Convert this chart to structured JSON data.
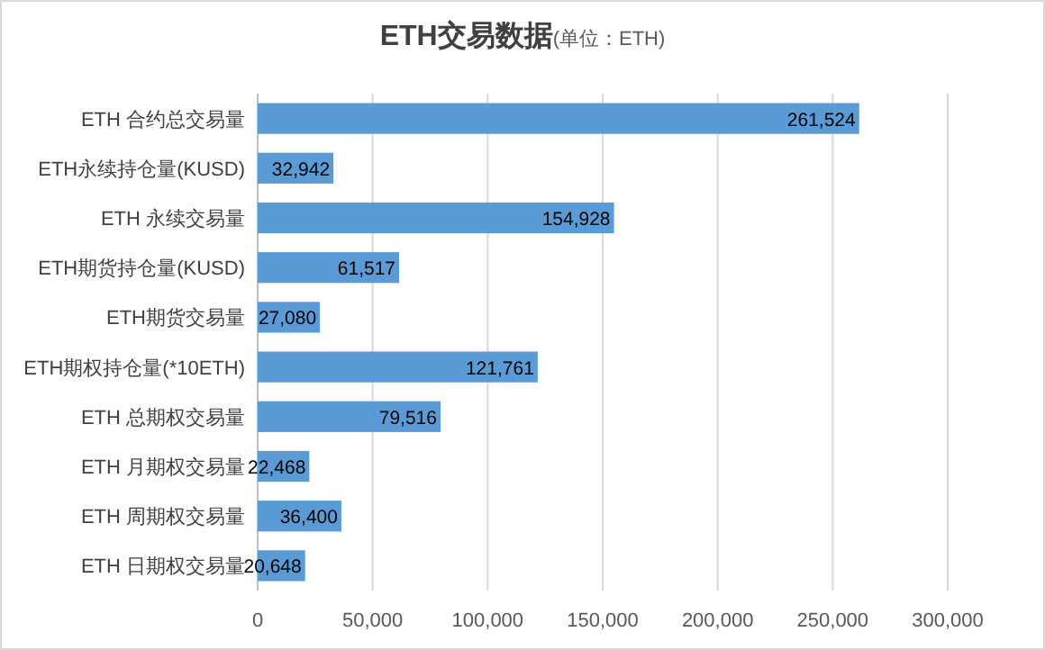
{
  "chart_data": {
    "type": "bar",
    "orientation": "horizontal",
    "title": "ETH交易数据",
    "subtitle": "(单位：ETH)",
    "categories": [
      "ETH 合约总交易量",
      "ETH永续持仓量(KUSD)",
      "ETH 永续交易量",
      "ETH期货持仓量(KUSD)",
      "ETH期货交易量",
      "ETH期权持仓量(*10ETH)",
      "ETH 总期权交易量",
      "ETH 月期权交易量",
      "ETH 周期权交易量",
      "ETH 日期权交易量"
    ],
    "values": [
      261524,
      32942,
      154928,
      61517,
      27080,
      121761,
      79516,
      22468,
      36400,
      20648
    ],
    "value_labels": [
      "261,524",
      "32,942",
      "154,928",
      "61,517",
      "27,080",
      "121,761",
      "79,516",
      "22,468",
      "36,400",
      "20,648"
    ],
    "color": "#5b9bd5",
    "grid": "x",
    "xlim": [
      0,
      300000
    ],
    "xticks": [
      0,
      {
        "value": 50000,
        "label": "50,000"
      },
      {
        "value": 100000,
        "label": "100,000"
      },
      {
        "value": 150000,
        "label": "150,000"
      },
      {
        "value": 200000,
        "label": "200,000"
      },
      {
        "value": 250000,
        "label": "250,000"
      },
      {
        "value": 300000,
        "label": "300,000"
      }
    ]
  }
}
